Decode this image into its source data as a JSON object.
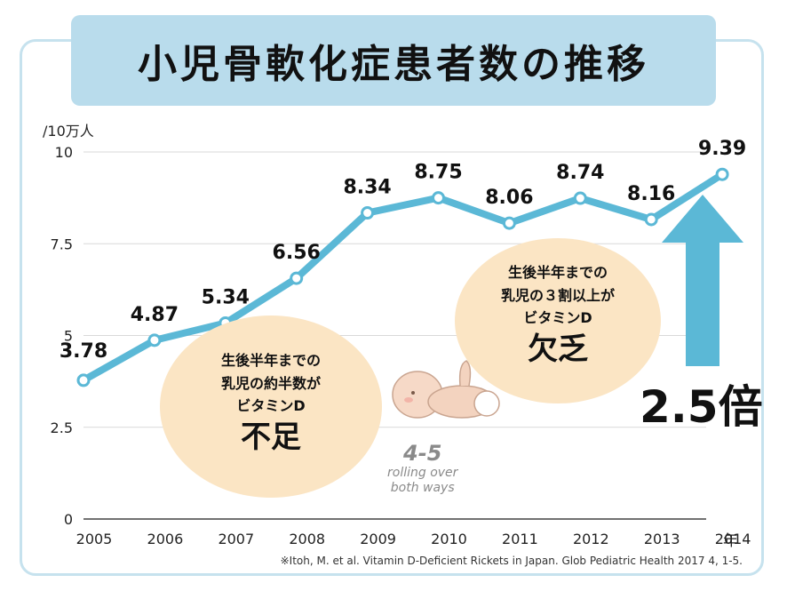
{
  "title": "小児骨軟化症患者数の推移",
  "y_unit": "/10万人",
  "x_unit": "年",
  "footnote": "※Itoh, M. et al. Vitamin D-Deficient Rickets in Japan. Glob Pediatric Health 2017 4, 1-5.",
  "bubble_left": {
    "line1": "生後半年までの",
    "line2": "乳児の約半数が",
    "line3": "ビタミンD",
    "big": "不足"
  },
  "bubble_right": {
    "line1": "生後半年までの",
    "line2": "乳児の３割以上が",
    "line3": "ビタミンD",
    "big": "欠乏"
  },
  "baby": {
    "big": "4-5",
    "line1": "rolling over",
    "line2": "both ways"
  },
  "arrow_label": "2.5倍",
  "colors": {
    "line": "#5bb8d6",
    "arrow": "#5bb8d6",
    "bubble": "#fbe5c4",
    "title_bg": "#b9dcec"
  },
  "chart_data": {
    "type": "line",
    "categories": [
      "2005",
      "2006",
      "2007",
      "2008",
      "2009",
      "2010",
      "2011",
      "2012",
      "2013",
      "2014"
    ],
    "values": [
      3.78,
      4.87,
      5.34,
      6.56,
      8.34,
      8.75,
      8.06,
      8.74,
      8.16,
      9.39
    ],
    "data_labels": [
      "3.78",
      "4.87",
      "5.34",
      "6.56",
      "8.34",
      "8.75",
      "8.06",
      "8.74",
      "8.16",
      "9.39"
    ],
    "ylim": [
      0,
      10
    ],
    "yticks": [
      "0",
      "2.5",
      "5",
      "7.5",
      "10"
    ],
    "grid": true
  }
}
